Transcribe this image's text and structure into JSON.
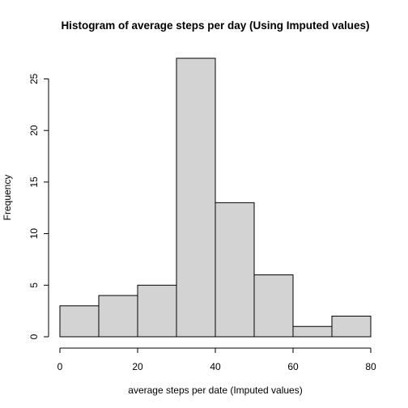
{
  "chart_data": {
    "type": "bar",
    "title": "Histogram of average steps per day (Using Imputed values)",
    "xlabel": "average steps per date (Imputed values)",
    "ylabel": "Frequency",
    "bins": [
      {
        "start": 0,
        "end": 10,
        "count": 3
      },
      {
        "start": 10,
        "end": 20,
        "count": 4
      },
      {
        "start": 20,
        "end": 30,
        "count": 5
      },
      {
        "start": 30,
        "end": 40,
        "count": 27
      },
      {
        "start": 40,
        "end": 50,
        "count": 13
      },
      {
        "start": 50,
        "end": 60,
        "count": 6
      },
      {
        "start": 60,
        "end": 70,
        "count": 1
      },
      {
        "start": 70,
        "end": 80,
        "count": 2
      }
    ],
    "x_ticks": [
      0,
      20,
      40,
      60,
      80
    ],
    "y_ticks": [
      0,
      5,
      10,
      15,
      20,
      25
    ],
    "xlim": [
      0,
      80
    ],
    "ylim": [
      0,
      27
    ],
    "grid": false,
    "legend": "none",
    "colors": {
      "bar_fill": "#d3d3d3",
      "bar_stroke": "#000000"
    }
  }
}
